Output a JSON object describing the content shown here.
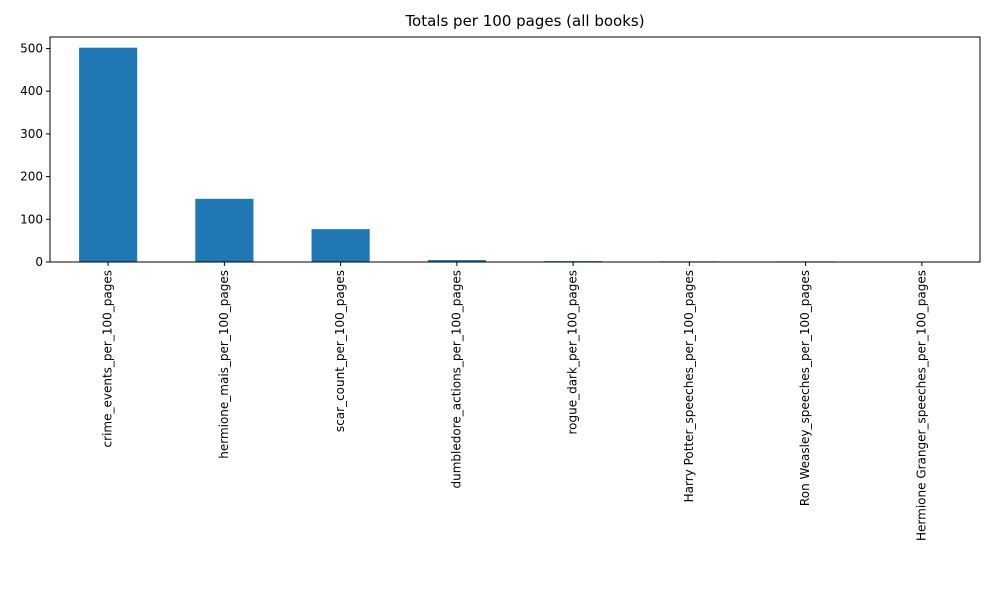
{
  "chart_data": {
    "type": "bar",
    "title": "Totals per 100 pages (all books)",
    "xlabel": "",
    "ylabel": "",
    "categories": [
      "crime_events_per_100_pages",
      "hermione_mais_per_100_pages",
      "scar_count_per_100_pages",
      "dumbledore_actions_per_100_pages",
      "rogue_dark_per_100_pages",
      "Harry Potter_speeches_per_100_pages",
      "Ron Weasley_speeches_per_100_pages",
      "Hermione Granger_speeches_per_100_pages"
    ],
    "values": [
      502,
      148,
      77,
      4.5,
      2,
      1.5,
      1.5,
      0.3
    ],
    "ylim": [
      0,
      527
    ],
    "yticks": [
      0,
      100,
      200,
      300,
      400,
      500
    ],
    "bar_color": "#1f77b4",
    "grid": false,
    "legend": "none"
  }
}
